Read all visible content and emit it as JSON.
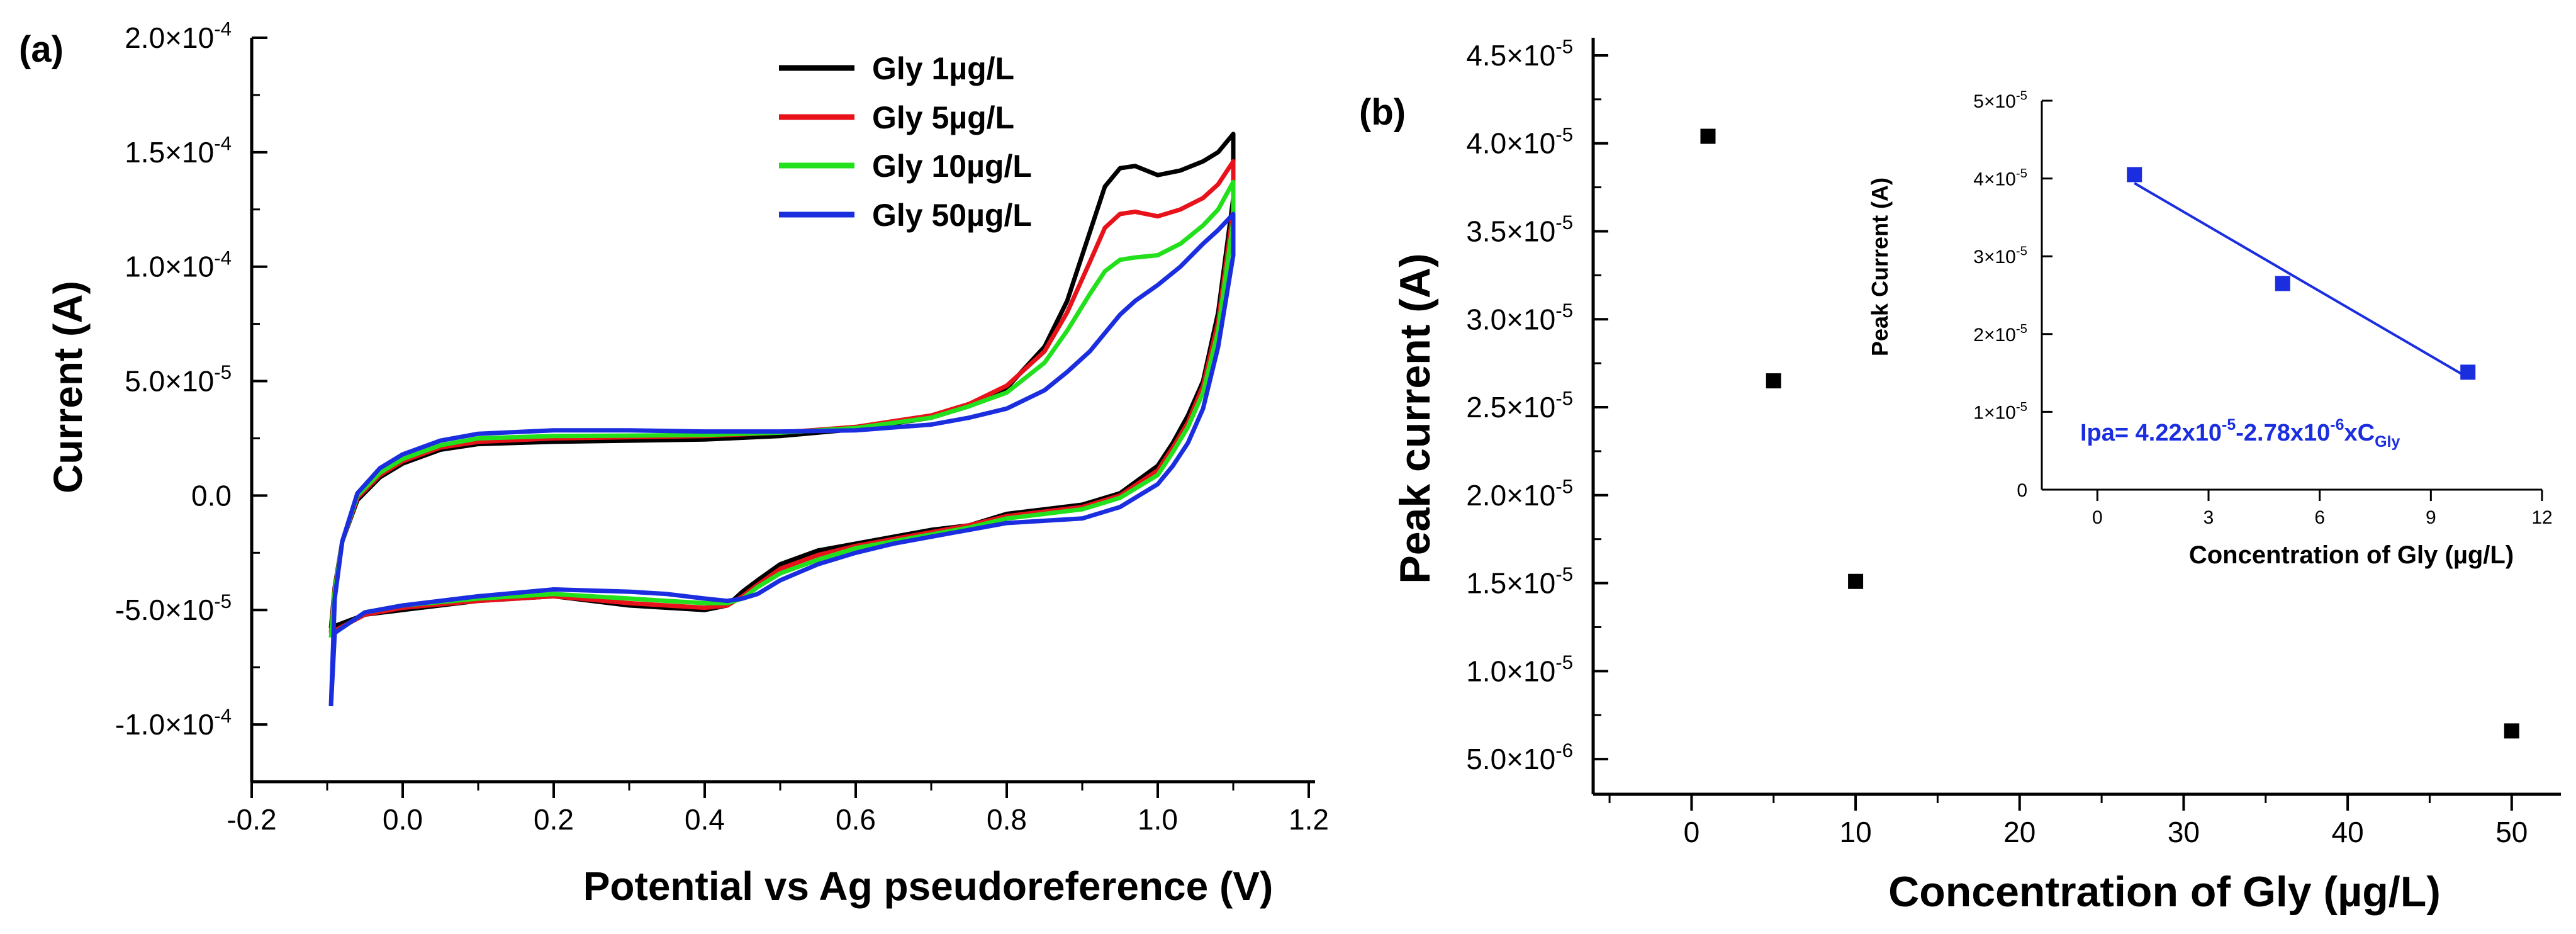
{
  "figure": {
    "panel_a": "(a)",
    "panel_b": "(b)"
  },
  "chart_data": [
    {
      "type": "line",
      "title": "",
      "xlabel": "Potential vs Ag pseudoreference (V)",
      "ylabel": "Current (A)",
      "xlim": [
        -0.2,
        1.2
      ],
      "ylim": [
        -0.000125,
        0.0002
      ],
      "xticks": [
        -0.2,
        0.0,
        0.2,
        0.4,
        0.6,
        0.8,
        1.0,
        1.2
      ],
      "xtick_labels": [
        "-0.2",
        "0.0",
        "0.2",
        "0.4",
        "0.6",
        "0.8",
        "1.0",
        "1.2"
      ],
      "yticks": [
        -0.0001,
        -5e-05,
        0,
        5e-05,
        0.0001,
        0.00015,
        0.0002
      ],
      "ytick_labels": [
        {
          "m": "-1.0×10",
          "e": "-4"
        },
        {
          "m": "-5.0×10",
          "e": "-5"
        },
        {
          "m": "0.0",
          "e": ""
        },
        {
          "m": "5.0×10",
          "e": "-5"
        },
        {
          "m": "1.0×10",
          "e": "-4"
        },
        {
          "m": "1.5×10",
          "e": "-4"
        },
        {
          "m": "2.0×10",
          "e": "-4"
        }
      ],
      "legend_position": "top-center",
      "series": [
        {
          "name": "Gly 1",
          "unit": "µg/L",
          "color": "#000000",
          "x": [
            -0.095,
            -0.09,
            -0.08,
            -0.06,
            -0.03,
            0.0,
            0.05,
            0.1,
            0.2,
            0.3,
            0.4,
            0.5,
            0.6,
            0.7,
            0.75,
            0.8,
            0.85,
            0.88,
            0.91,
            0.93,
            0.95,
            0.97,
            1.0,
            1.03,
            1.06,
            1.08,
            1.1,
            1.1,
            1.08,
            1.06,
            1.04,
            1.02,
            1.0,
            0.95,
            0.9,
            0.85,
            0.8,
            0.75,
            0.7,
            0.65,
            0.6,
            0.55,
            0.5,
            0.47,
            0.45,
            0.43,
            0.4,
            0.35,
            0.3,
            0.2,
            0.1,
            0.0,
            -0.05,
            -0.09,
            -0.095
          ],
          "y": [
            -5.8e-05,
            -4e-05,
            -2e-05,
            -2e-06,
            8e-06,
            1.4e-05,
            2e-05,
            2.25e-05,
            2.35e-05,
            2.4e-05,
            2.45e-05,
            2.6e-05,
            2.9e-05,
            3.4e-05,
            3.9e-05,
            4.7e-05,
            6.5e-05,
            8.5e-05,
            0.000115,
            0.000135,
            0.000143,
            0.000144,
            0.00014,
            0.000142,
            0.000146,
            0.00015,
            0.000158,
            0.00013,
            8e-05,
            5e-05,
            3.5e-05,
            2.3e-05,
            1.3e-05,
            1e-06,
            -4e-06,
            -6e-06,
            -8e-06,
            -1.3e-05,
            -1.5e-05,
            -1.8e-05,
            -2.1e-05,
            -2.4e-05,
            -3e-05,
            -3.7e-05,
            -4.2e-05,
            -4.8e-05,
            -5e-05,
            -4.9e-05,
            -4.8e-05,
            -4.4e-05,
            -4.6e-05,
            -5e-05,
            -5.2e-05,
            -5.7e-05,
            -5.8e-05
          ]
        },
        {
          "name": "Gly 5",
          "unit": "µg/L",
          "color": "#e8121a",
          "x": [
            -0.095,
            -0.09,
            -0.08,
            -0.06,
            -0.03,
            0.0,
            0.05,
            0.1,
            0.2,
            0.3,
            0.4,
            0.5,
            0.6,
            0.7,
            0.75,
            0.8,
            0.85,
            0.88,
            0.91,
            0.93,
            0.95,
            0.97,
            1.0,
            1.03,
            1.06,
            1.08,
            1.1,
            1.1,
            1.08,
            1.06,
            1.04,
            1.02,
            1.0,
            0.95,
            0.9,
            0.85,
            0.8,
            0.75,
            0.7,
            0.65,
            0.6,
            0.55,
            0.5,
            0.47,
            0.45,
            0.43,
            0.4,
            0.35,
            0.3,
            0.2,
            0.1,
            0.0,
            -0.05,
            -0.09,
            -0.095
          ],
          "y": [
            -6e-05,
            -4.1e-05,
            -2e-05,
            -1e-06,
            9e-06,
            1.5e-05,
            2.1e-05,
            2.35e-05,
            2.5e-05,
            2.55e-05,
            2.6e-05,
            2.75e-05,
            3e-05,
            3.5e-05,
            4e-05,
            4.8e-05,
            6.3e-05,
            8e-05,
            0.000102,
            0.000117,
            0.000123,
            0.000124,
            0.000122,
            0.000125,
            0.00013,
            0.000136,
            0.000146,
            0.000125,
            7.6e-05,
            4.8e-05,
            3.2e-05,
            2.1e-05,
            1.1e-05,
            0,
            -5e-06,
            -7e-06,
            -9e-06,
            -1.3e-05,
            -1.6e-05,
            -1.9e-05,
            -2.2e-05,
            -2.6e-05,
            -3.2e-05,
            -3.9e-05,
            -4.4e-05,
            -4.8e-05,
            -4.9e-05,
            -4.8e-05,
            -4.7e-05,
            -4.4e-05,
            -4.6e-05,
            -4.9e-05,
            -5.2e-05,
            -5.9e-05,
            -6e-05
          ]
        },
        {
          "name": "Gly 10",
          "unit": "µg/L",
          "color": "#22e01c",
          "x": [
            -0.095,
            -0.09,
            -0.08,
            -0.06,
            -0.03,
            0.0,
            0.05,
            0.1,
            0.2,
            0.3,
            0.4,
            0.5,
            0.6,
            0.7,
            0.75,
            0.8,
            0.85,
            0.88,
            0.91,
            0.93,
            0.95,
            0.97,
            1.0,
            1.03,
            1.06,
            1.08,
            1.1,
            1.1,
            1.08,
            1.06,
            1.04,
            1.02,
            1.0,
            0.95,
            0.9,
            0.85,
            0.8,
            0.75,
            0.7,
            0.65,
            0.6,
            0.55,
            0.5,
            0.47,
            0.45,
            0.43,
            0.4,
            0.35,
            0.3,
            0.2,
            0.1,
            0.0,
            -0.05,
            -0.09,
            -0.095
          ],
          "y": [
            -6.2e-05,
            -4.2e-05,
            -2e-05,
            0,
            1e-05,
            1.6e-05,
            2.2e-05,
            2.5e-05,
            2.6e-05,
            2.62e-05,
            2.65e-05,
            2.75e-05,
            2.95e-05,
            3.4e-05,
            3.9e-05,
            4.5e-05,
            5.8e-05,
            7.2e-05,
            8.8e-05,
            9.8e-05,
            0.000103,
            0.000104,
            0.000105,
            0.00011,
            0.000118,
            0.000125,
            0.000137,
            0.00012,
            7.2e-05,
            4.5e-05,
            3e-05,
            1.9e-05,
            9e-06,
            -1e-06,
            -6e-06,
            -8e-06,
            -1e-05,
            -1.4e-05,
            -1.7e-05,
            -2e-05,
            -2.3e-05,
            -2.8e-05,
            -3.4e-05,
            -4e-05,
            -4.5e-05,
            -4.7e-05,
            -4.7e-05,
            -4.6e-05,
            -4.5e-05,
            -4.3e-05,
            -4.5e-05,
            -4.8e-05,
            -5.1e-05,
            -6e-05,
            -6.2e-05
          ]
        },
        {
          "name": "Gly 50",
          "unit": "µg/L",
          "color": "#1a2ee0",
          "x": [
            -0.095,
            -0.09,
            -0.08,
            -0.06,
            -0.03,
            0.0,
            0.05,
            0.1,
            0.2,
            0.3,
            0.4,
            0.5,
            0.6,
            0.7,
            0.75,
            0.8,
            0.85,
            0.88,
            0.91,
            0.93,
            0.95,
            0.97,
            1.0,
            1.03,
            1.06,
            1.08,
            1.1,
            1.1,
            1.08,
            1.06,
            1.04,
            1.02,
            1.0,
            0.95,
            0.9,
            0.85,
            0.8,
            0.75,
            0.7,
            0.65,
            0.6,
            0.55,
            0.5,
            0.47,
            0.45,
            0.43,
            0.4,
            0.35,
            0.3,
            0.2,
            0.1,
            0.0,
            -0.05,
            -0.09,
            -0.095
          ],
          "y": [
            -9.2e-05,
            -4.5e-05,
            -2e-05,
            1e-06,
            1.2e-05,
            1.8e-05,
            2.4e-05,
            2.7e-05,
            2.85e-05,
            2.85e-05,
            2.8e-05,
            2.8e-05,
            2.85e-05,
            3.1e-05,
            3.4e-05,
            3.8e-05,
            4.6e-05,
            5.4e-05,
            6.3e-05,
            7.1e-05,
            7.9e-05,
            8.5e-05,
            9.2e-05,
            0.0001,
            0.00011,
            0.000116,
            0.000123,
            0.000105,
            6.5e-05,
            3.8e-05,
            2.3e-05,
            1.3e-05,
            5e-06,
            -5e-06,
            -1e-05,
            -1.1e-05,
            -1.2e-05,
            -1.5e-05,
            -1.8e-05,
            -2.1e-05,
            -2.5e-05,
            -3e-05,
            -3.7e-05,
            -4.3e-05,
            -4.5e-05,
            -4.6e-05,
            -4.5e-05,
            -4.3e-05,
            -4.2e-05,
            -4.1e-05,
            -4.4e-05,
            -4.8e-05,
            -5.1e-05,
            -6e-05,
            -9.2e-05
          ]
        }
      ]
    },
    {
      "type": "scatter",
      "title": "",
      "xlabel": "Concentration of Gly (",
      "xlabel_unit": "µg/L",
      "xlabel_close": ")",
      "ylabel": "Peak current (A)",
      "xlim": [
        -6,
        53
      ],
      "ylim": [
        3e-06,
        4.6e-05
      ],
      "xticks": [
        0,
        10,
        20,
        30,
        40,
        50
      ],
      "xtick_labels": [
        "0",
        "10",
        "20",
        "30",
        "40",
        "50"
      ],
      "yticks": [
        5e-06,
        1e-05,
        1.5e-05,
        2e-05,
        2.5e-05,
        3e-05,
        3.5e-05,
        4e-05,
        4.5e-05
      ],
      "ytick_labels": [
        {
          "m": "5.0×10",
          "e": "-6"
        },
        {
          "m": "1.0×10",
          "e": "-5"
        },
        {
          "m": "1.5×10",
          "e": "-5"
        },
        {
          "m": "2.0×10",
          "e": "-5"
        },
        {
          "m": "2.5×10",
          "e": "-5"
        },
        {
          "m": "3.0×10",
          "e": "-5"
        },
        {
          "m": "3.5×10",
          "e": "-5"
        },
        {
          "m": "4.0×10",
          "e": "-5"
        },
        {
          "m": "4.5×10",
          "e": "-5"
        }
      ],
      "marker_color": "#000000",
      "points": {
        "x": [
          1,
          5,
          10,
          50
        ],
        "y": [
          4.04e-05,
          2.65e-05,
          1.51e-05,
          6.6e-06
        ]
      }
    },
    {
      "type": "scatter",
      "title": "",
      "inset_of": "panel_b",
      "xlabel": "Concentration of Gly (",
      "xlabel_unit": "µg/L",
      "xlabel_close": ")",
      "ylabel": "Peak Current (A)",
      "xlim": [
        -1.5,
        12
      ],
      "ylim": [
        0,
        5e-05
      ],
      "xticks": [
        0,
        3,
        6,
        9,
        12
      ],
      "xtick_labels": [
        "0",
        "3",
        "6",
        "9",
        "12"
      ],
      "yticks": [
        0,
        1e-05,
        2e-05,
        3e-05,
        4e-05,
        5e-05
      ],
      "ytick_labels": [
        {
          "m": "0",
          "e": ""
        },
        {
          "m": "1×10",
          "e": "-5"
        },
        {
          "m": "2×10",
          "e": "-5"
        },
        {
          "m": "3×10",
          "e": "-5"
        },
        {
          "m": "4×10",
          "e": "-5"
        },
        {
          "m": "5×10",
          "e": "-5"
        }
      ],
      "marker_color": "#1a2ee0",
      "points": {
        "x": [
          1,
          5,
          10
        ],
        "y": [
          4.05e-05,
          2.65e-05,
          1.51e-05
        ]
      },
      "fit": {
        "x": [
          1,
          10
        ],
        "y": [
          3.94e-05,
          1.44e-05
        ],
        "color": "#1a2ee0"
      },
      "annotation": {
        "lead": "Ipa= 4.22x10",
        "exp1": "-5",
        "mid": "-2.78x10",
        "exp2": "-6",
        "tail": "xC",
        "sub": "Gly"
      }
    }
  ]
}
